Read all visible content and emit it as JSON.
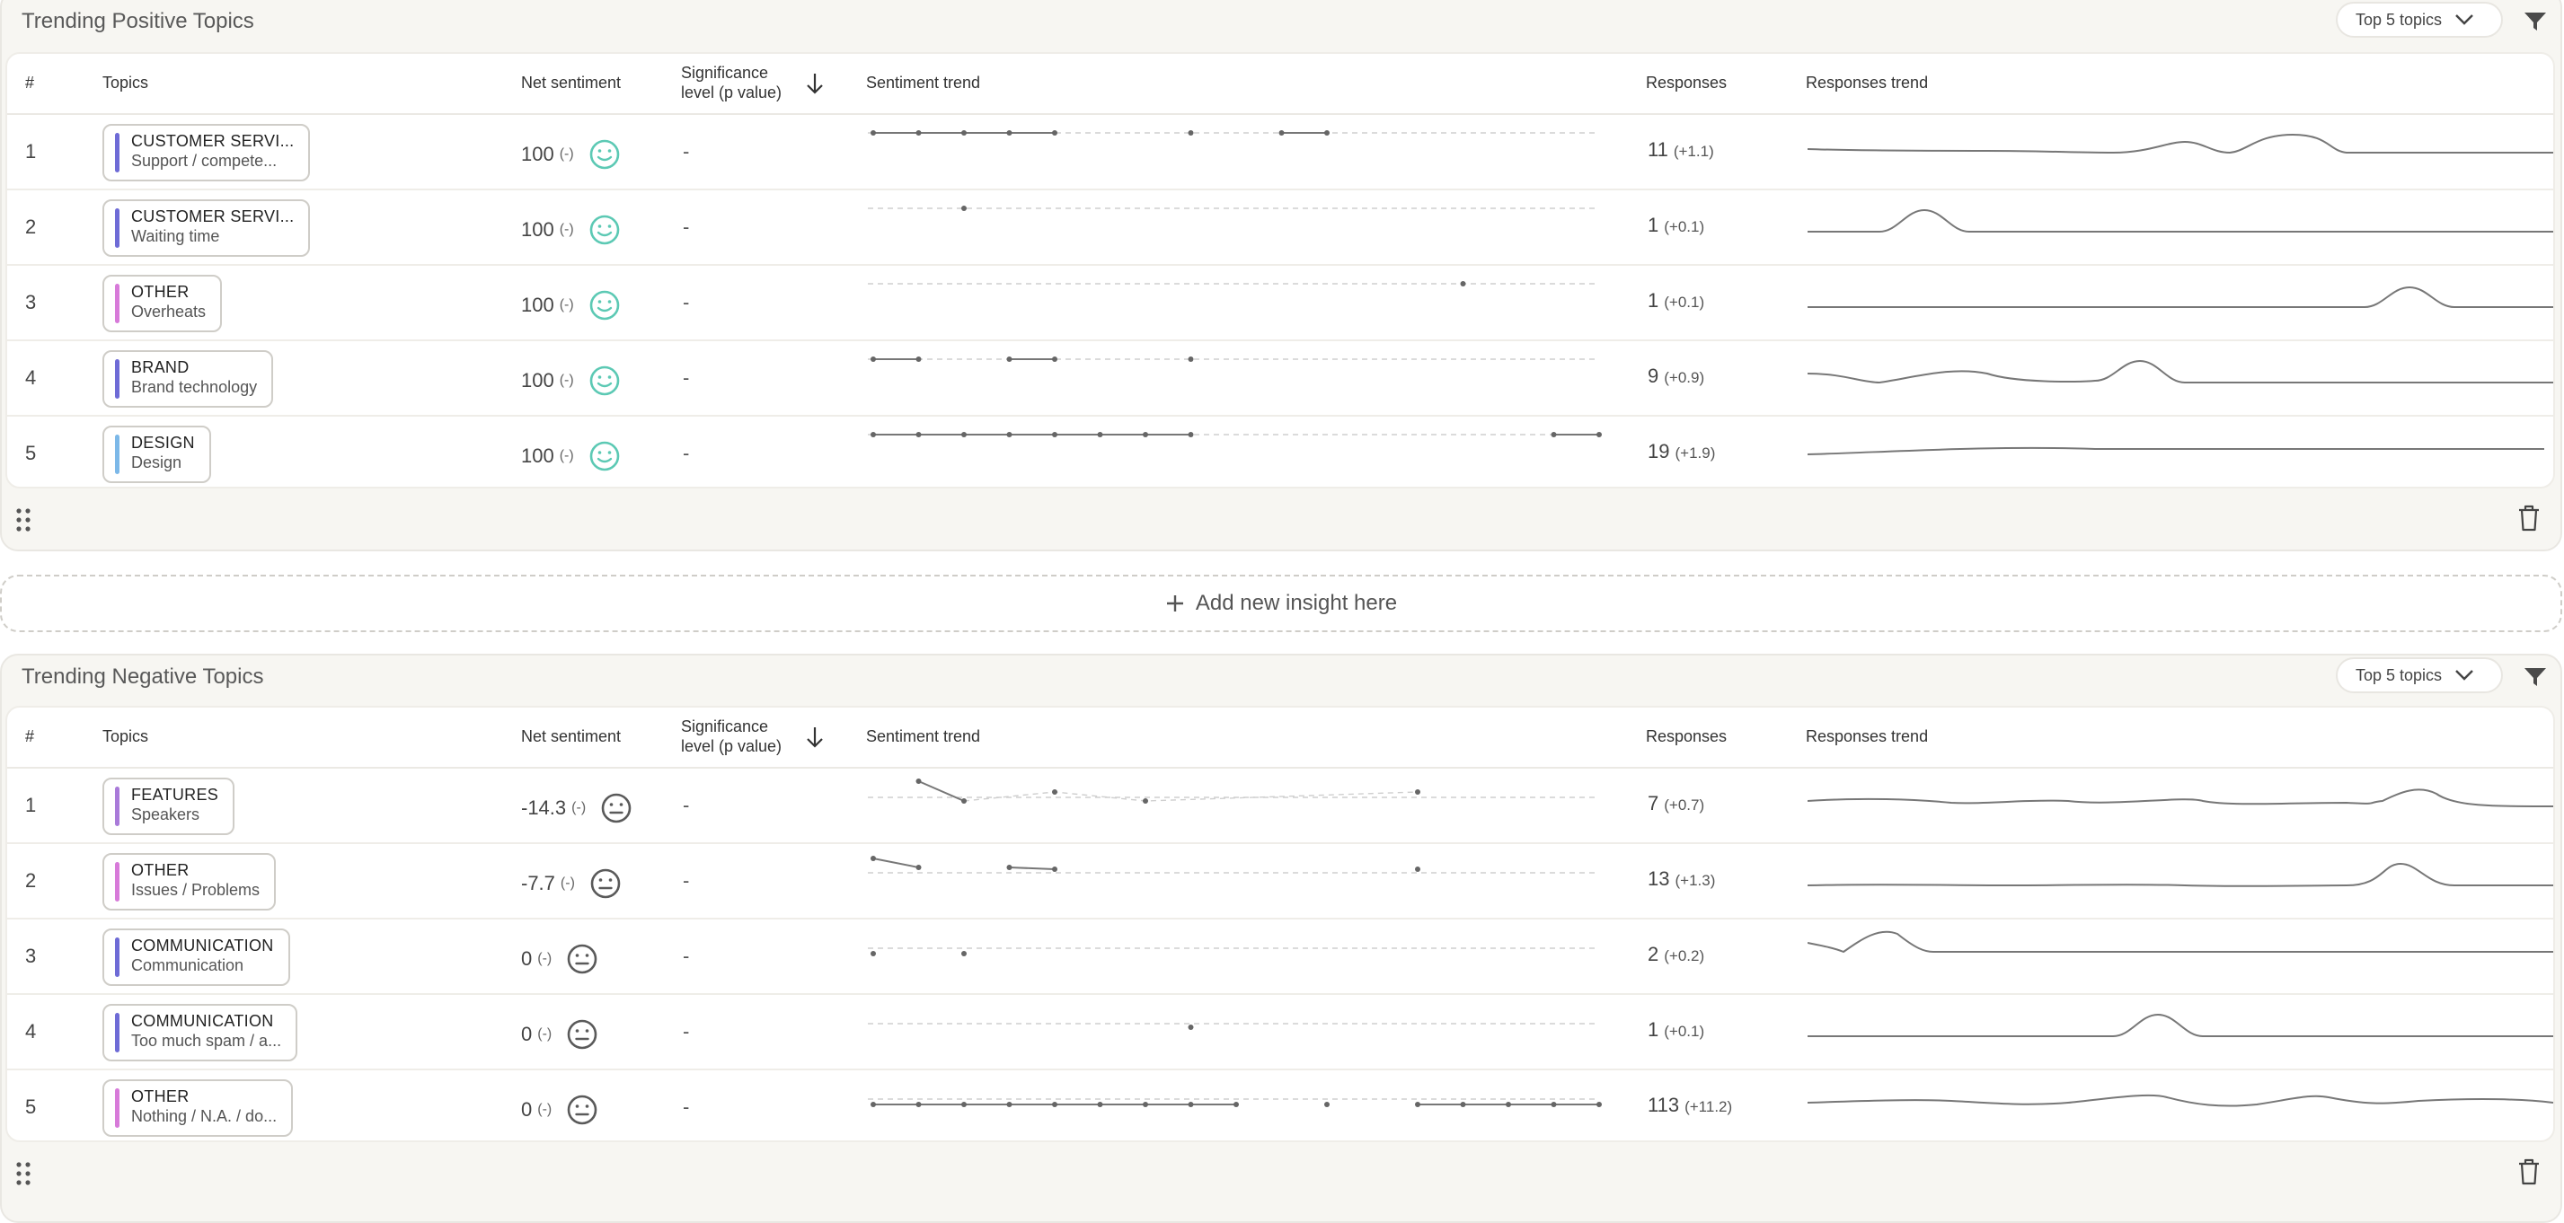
{
  "add_insight_label": "Add new insight here",
  "colors": {
    "positive_face": "#5cc9b4",
    "neutral_face": "#5a5a5a",
    "customer_service": "#6e6bd6",
    "other": "#d77ad9",
    "brand": "#6e6bd6",
    "design": "#7cb8e8",
    "features": "#a97ad9",
    "communication": "#6e6bd6"
  },
  "columns": {
    "rank": "#",
    "topics": "Topics",
    "net_sentiment": "Net sentiment",
    "significance_line1": "Significance",
    "significance_line2": "level (p value)",
    "sentiment_trend": "Sentiment trend",
    "responses": "Responses",
    "responses_trend": "Responses trend"
  },
  "positive": {
    "title": "Trending Positive Topics",
    "dropdown": "Top 5 topics",
    "rows": [
      {
        "rank": "1",
        "category": "CUSTOMER SERVI...",
        "subtopic": "Support / compete...",
        "color": "#6e6bd6",
        "sentiment": "100",
        "sentiment_change": "(-)",
        "significance": "-",
        "responses": "11",
        "responses_change": "(+1.1)"
      },
      {
        "rank": "2",
        "category": "CUSTOMER SERVI...",
        "subtopic": "Waiting time",
        "color": "#6e6bd6",
        "sentiment": "100",
        "sentiment_change": "(-)",
        "significance": "-",
        "responses": "1",
        "responses_change": "(+0.1)"
      },
      {
        "rank": "3",
        "category": "OTHER",
        "subtopic": "Overheats",
        "color": "#d77ad9",
        "sentiment": "100",
        "sentiment_change": "(-)",
        "significance": "-",
        "responses": "1",
        "responses_change": "(+0.1)"
      },
      {
        "rank": "4",
        "category": "BRAND",
        "subtopic": "Brand technology",
        "color": "#6e6bd6",
        "sentiment": "100",
        "sentiment_change": "(-)",
        "significance": "-",
        "responses": "9",
        "responses_change": "(+0.9)"
      },
      {
        "rank": "5",
        "category": "DESIGN",
        "subtopic": "Design",
        "color": "#7cb8e8",
        "sentiment": "100",
        "sentiment_change": "(-)",
        "significance": "-",
        "responses": "19",
        "responses_change": "(+1.9)"
      }
    ]
  },
  "negative": {
    "title": "Trending Negative Topics",
    "dropdown": "Top 5 topics",
    "rows": [
      {
        "rank": "1",
        "category": "FEATURES",
        "subtopic": "Speakers",
        "color": "#a97ad9",
        "sentiment": "-14.3",
        "sentiment_change": "(-)",
        "significance": "-",
        "responses": "7",
        "responses_change": "(+0.7)"
      },
      {
        "rank": "2",
        "category": "OTHER",
        "subtopic": "Issues / Problems",
        "color": "#d77ad9",
        "sentiment": "-7.7",
        "sentiment_change": "(-)",
        "significance": "-",
        "responses": "13",
        "responses_change": "(+1.3)"
      },
      {
        "rank": "3",
        "category": "COMMUNICATION",
        "subtopic": "Communication",
        "color": "#6e6bd6",
        "sentiment": "0",
        "sentiment_change": "(-)",
        "significance": "-",
        "responses": "2",
        "responses_change": "(+0.2)"
      },
      {
        "rank": "4",
        "category": "COMMUNICATION",
        "subtopic": "Too much spam / a...",
        "color": "#6e6bd6",
        "sentiment": "0",
        "sentiment_change": "(-)",
        "significance": "-",
        "responses": "1",
        "responses_change": "(+0.1)"
      },
      {
        "rank": "5",
        "category": "OTHER",
        "subtopic": "Nothing / N.A. / do...",
        "color": "#d77ad9",
        "sentiment": "0",
        "sentiment_change": "(-)",
        "significance": "-",
        "responses": "113",
        "responses_change": "(+11.2)"
      }
    ]
  }
}
